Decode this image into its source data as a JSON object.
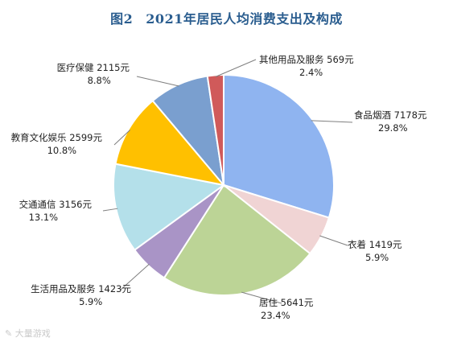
{
  "figure": {
    "label": "图2",
    "title": "2021年居民人均消费支出及构成"
  },
  "watermark": "大量游戏",
  "chart_data": {
    "type": "pie",
    "title": "2021年居民人均消费支出及构成",
    "slices": [
      {
        "name": "食品烟酒",
        "value_label": "7178元",
        "value": 7178,
        "percent": 29.8,
        "percent_label": "29.8%",
        "color": "#8fb4f0"
      },
      {
        "name": "衣着",
        "value_label": "1419元",
        "value": 1419,
        "percent": 5.9,
        "percent_label": "5.9%",
        "color": "#f0d4d4"
      },
      {
        "name": "居住",
        "value_label": "5641元",
        "value": 5641,
        "percent": 23.4,
        "percent_label": "23.4%",
        "color": "#bcd496"
      },
      {
        "name": "生活用品及服务",
        "value_label": "1423元",
        "value": 1423,
        "percent": 5.9,
        "percent_label": "5.9%",
        "color": "#a994c6"
      },
      {
        "name": "交通通信",
        "value_label": "3156元",
        "value": 3156,
        "percent": 13.1,
        "percent_label": "13.1%",
        "color": "#b4e0ea"
      },
      {
        "name": "教育文化娱乐",
        "value_label": "2599元",
        "value": 2599,
        "percent": 10.8,
        "percent_label": "10.8%",
        "color": "#ffc000"
      },
      {
        "name": "医疗保健",
        "value_label": "2115元",
        "value": 2115,
        "percent": 8.8,
        "percent_label": "8.8%",
        "color": "#7a9fcf"
      },
      {
        "name": "其他用品及服务",
        "value_label": "569元",
        "value": 569,
        "percent": 2.4,
        "percent_label": "2.4%",
        "color": "#d05a5a"
      }
    ]
  }
}
